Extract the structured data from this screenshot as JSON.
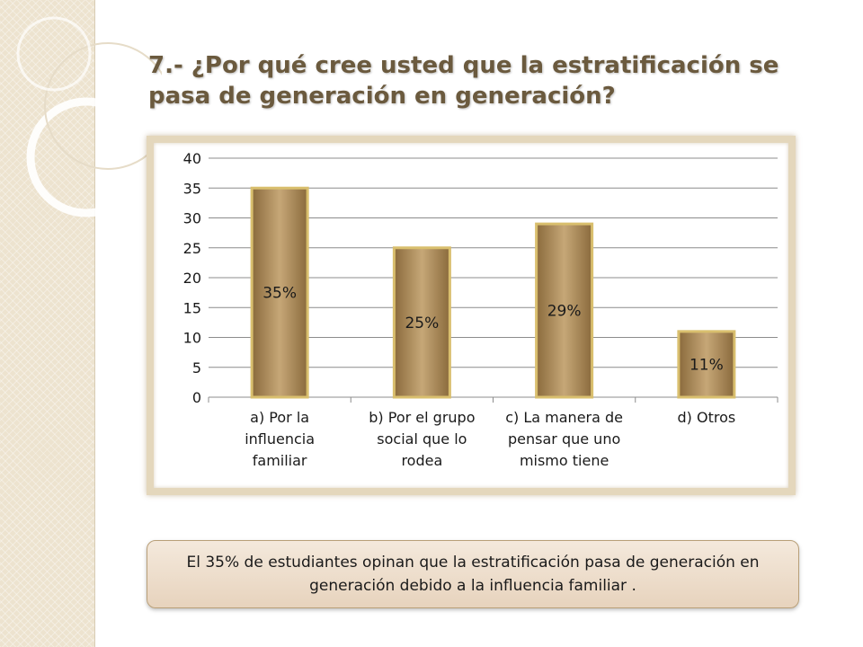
{
  "slide": {
    "title": "7.- ¿Por qué cree usted que la estratificación se pasa de generación en generación?",
    "note": "El 35% de estudiantes opinan que la estratificación pasa de generación en generación debido a la influencia familiar ."
  },
  "colors": {
    "bar_dark": "#8a6a3c",
    "bar_light": "#c6a777",
    "bar_border": "#d9bf6e",
    "title": "#6b5a3e",
    "grid": "#8c8c8c"
  },
  "chart_data": {
    "type": "bar",
    "title": "",
    "xlabel": "",
    "ylabel": "",
    "ylim": [
      0,
      40
    ],
    "yticks": [
      0,
      5,
      10,
      15,
      20,
      25,
      30,
      35,
      40
    ],
    "grid": true,
    "categories": [
      "a) Por la influencia familiar",
      "b) Por el grupo social que lo rodea",
      "c) La manera de pensar que uno mismo tiene",
      "d) Otros"
    ],
    "category_lines": [
      [
        "a) Por la",
        "influencia",
        "familiar"
      ],
      [
        "b) Por el grupo",
        "social que lo",
        "rodea"
      ],
      [
        "c) La manera de",
        "pensar que uno",
        "mismo tiene"
      ],
      [
        "d) Otros"
      ]
    ],
    "values": [
      35,
      25,
      29,
      11
    ],
    "data_labels": [
      "35%",
      "25%",
      "29%",
      "11%"
    ]
  }
}
